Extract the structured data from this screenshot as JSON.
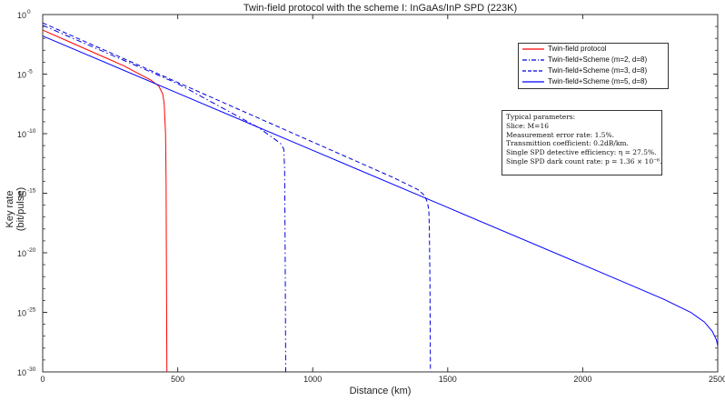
{
  "chart_data": {
    "type": "line",
    "title": "Twin-field protocol with the scheme I: InGaAs/InP SPD (223K)",
    "xlabel": "Distance (km)",
    "ylabel": "Key rate (bit/pulse)",
    "xlim": [
      0,
      2500
    ],
    "ylim_log10": [
      -30,
      0
    ],
    "y_scale": "log",
    "x_ticks": [
      0,
      500,
      1000,
      1500,
      2000,
      2500
    ],
    "x_tick_labels": [
      "0",
      "500",
      "1000",
      "1500",
      "2000",
      "2500"
    ],
    "y_ticks_log10": [
      0,
      -5,
      -10,
      -15,
      -20,
      -25,
      -30
    ],
    "y_tick_labels": [
      "10",
      "10",
      "10",
      "10",
      "10",
      "10",
      "10"
    ],
    "y_tick_exponents": [
      "0",
      "-5",
      "-10",
      "-15",
      "-20",
      "-25",
      "-30"
    ],
    "grid": false,
    "legend_position": "top-right",
    "series": [
      {
        "name": "Twin-field protocol",
        "color": "#ff0000",
        "dash": "solid",
        "x": [
          0,
          100,
          200,
          300,
          400,
          430,
          445,
          450,
          452,
          455,
          457,
          458,
          460
        ],
        "log10_y": [
          -1.3,
          -2.3,
          -3.3,
          -4.3,
          -5.5,
          -6.0,
          -6.7,
          -7.5,
          -8.5,
          -10.0,
          -14.0,
          -20.0,
          -30.0
        ]
      },
      {
        "name": "Twin-field+Scheme (m=2, d=8)",
        "color": "#0000dd",
        "dash": "dashdot",
        "x": [
          0,
          500,
          800,
          880,
          893,
          896,
          898,
          900
        ],
        "log10_y": [
          -0.9,
          -5.8,
          -9.5,
          -10.8,
          -11.3,
          -13.0,
          -20.0,
          -30.0
        ]
      },
      {
        "name": "Twin-field+Scheme (m=3, d=8)",
        "color": "#0000dd",
        "dash": "dashed",
        "x": [
          0,
          500,
          1000,
          1300,
          1390,
          1415,
          1425,
          1430,
          1432,
          1434,
          1436
        ],
        "log10_y": [
          -0.7,
          -5.7,
          -10.7,
          -13.7,
          -14.7,
          -15.2,
          -15.8,
          -16.4,
          -18.0,
          -22.0,
          -30.0
        ]
      },
      {
        "name": "Twin-field+Scheme (m=5, d=8)",
        "color": "#0000ff",
        "dash": "solid",
        "x": [
          0,
          500,
          1000,
          1500,
          2000,
          2300,
          2400,
          2450,
          2480,
          2495,
          2500
        ],
        "log10_y": [
          -1.8,
          -6.6,
          -11.4,
          -16.2,
          -21.0,
          -23.9,
          -25.0,
          -25.8,
          -26.6,
          -27.3,
          -27.8
        ]
      }
    ],
    "annotation": {
      "header": "Typical parameters:",
      "lines": [
        "Slice: M=16",
        "Measurement error rate: 1.5%.",
        "Transmittion coefficient: 0.2dB/km.",
        "Single SPD detective efficiency: η = 27.5%.",
        "Single SPD dark count rate: p = 1.36 × 10⁻⁶."
      ]
    }
  }
}
